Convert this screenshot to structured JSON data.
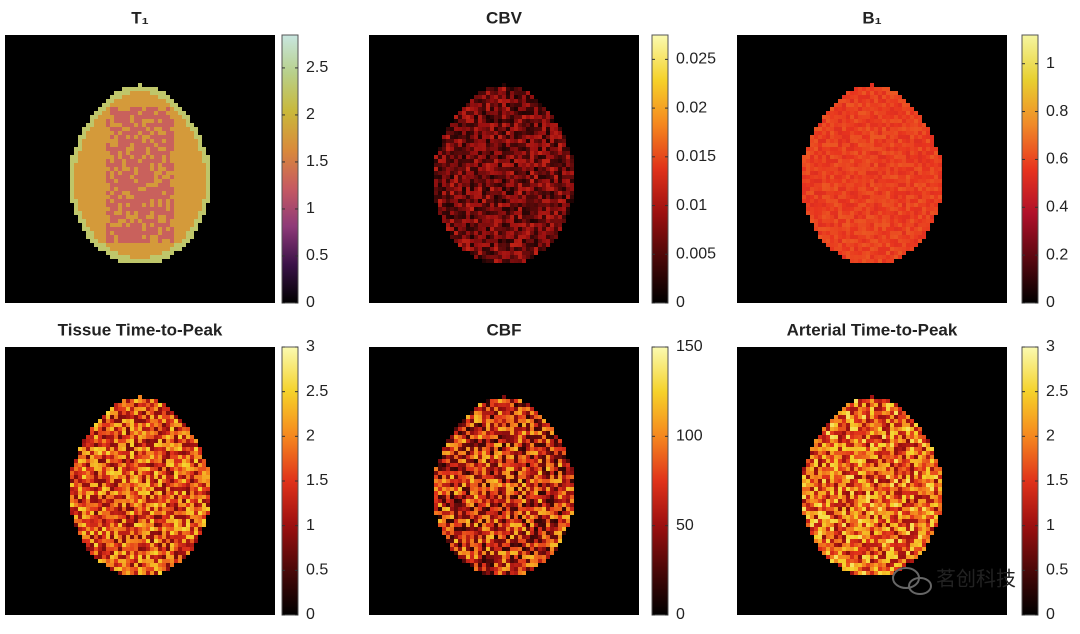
{
  "chart_data": [
    {
      "type": "heatmap",
      "title": "T₁",
      "clim": [
        0,
        2.85
      ],
      "colorbar_ticks": [
        0,
        0.5,
        1,
        1.5,
        2,
        2.5
      ],
      "colormap": [
        "#000000",
        "#3a1248",
        "#8e3a78",
        "#c65a62",
        "#d98a3a",
        "#c9b83a",
        "#b8d08a",
        "#c8e6e0"
      ]
    },
    {
      "type": "heatmap",
      "title": "CBF",
      "clim": [
        0,
        150
      ],
      "colorbar_ticks": [
        0,
        50,
        100,
        150
      ],
      "colormap": [
        "#000000",
        "#4a0808",
        "#9c1010",
        "#e0321a",
        "#f5871e",
        "#f5d22a",
        "#fafab0"
      ]
    },
    {
      "type": "heatmap",
      "title": "Tissue Time-to-Peak",
      "clim": [
        0,
        3
      ],
      "colorbar_ticks": [
        0,
        0.5,
        1,
        1.5,
        2,
        2.5,
        3
      ],
      "colormap": [
        "#000000",
        "#4a0808",
        "#9c1010",
        "#e0321a",
        "#f5871e",
        "#f5d22a",
        "#fafab0"
      ]
    },
    {
      "type": "heatmap",
      "title": "B₁",
      "clim": [
        0,
        1.12
      ],
      "colorbar_ticks": [
        0,
        0.2,
        0.4,
        0.6,
        0.8,
        1
      ],
      "colormap": [
        "#000000",
        "#5a0810",
        "#b0102a",
        "#e8341e",
        "#f08a28",
        "#e8d030",
        "#f5f5a0"
      ]
    },
    {
      "type": "heatmap",
      "title": "CBV",
      "clim": [
        0,
        0.0275
      ],
      "colorbar_ticks": [
        0,
        0.005,
        0.01,
        0.015,
        0.02,
        0.025
      ],
      "colormap": [
        "#000000",
        "#4a0808",
        "#9c1010",
        "#e0321a",
        "#f5871e",
        "#f5d22a",
        "#fafab0"
      ]
    },
    {
      "type": "heatmap",
      "title": "Arterial Time-to-Peak",
      "clim": [
        0,
        3
      ],
      "colorbar_ticks": [
        0,
        0.5,
        1,
        1.5,
        2,
        2.5,
        3
      ],
      "colormap": [
        "#000000",
        "#4a0808",
        "#9c1010",
        "#e0321a",
        "#f5871e",
        "#f5d22a",
        "#fafab0"
      ]
    }
  ],
  "watermark": "茗创科技"
}
